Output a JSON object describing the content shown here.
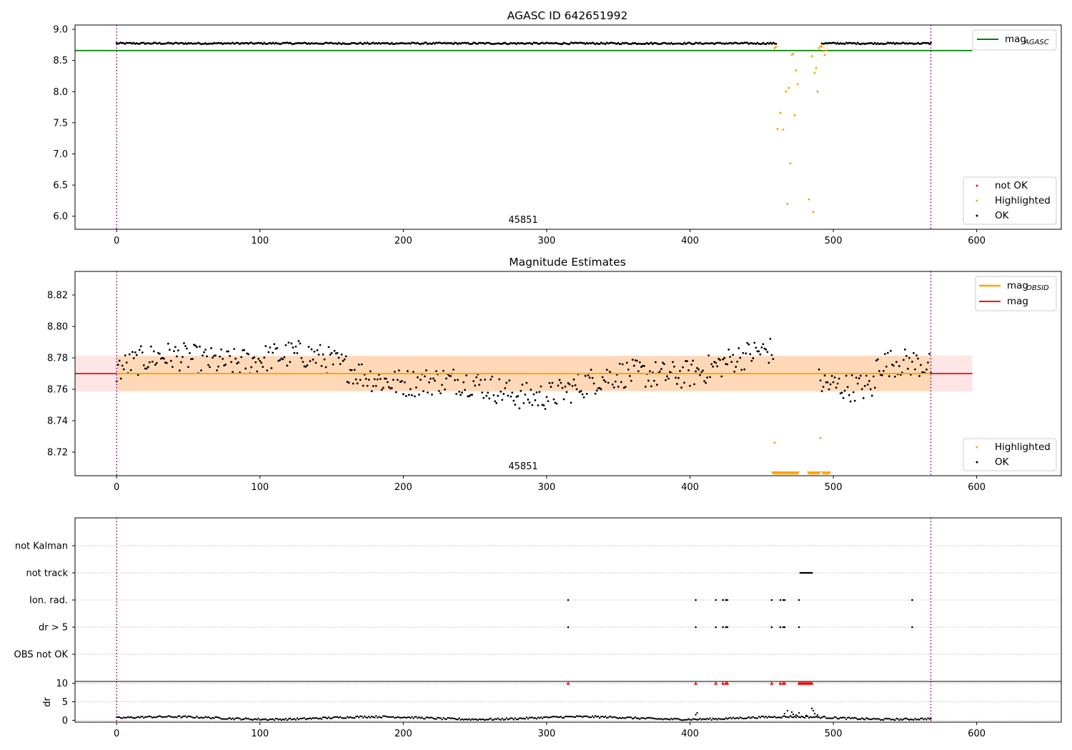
{
  "chart_data": [
    {
      "type": "scatter",
      "title": "AGASC ID 642651992",
      "annotation": "45851",
      "xlim": [
        -29,
        659
      ],
      "ylim": [
        5.79,
        9.07
      ],
      "xticks": [
        0,
        100,
        200,
        300,
        400,
        500,
        600
      ],
      "yticks": [
        6.0,
        6.5,
        7.0,
        7.5,
        8.0,
        8.5,
        9.0
      ],
      "ytick_labels": [
        "6.0",
        "6.5",
        "7.0",
        "7.5",
        "8.0",
        "8.5",
        "9.0"
      ],
      "vlines": [
        0,
        568
      ],
      "reference_line": {
        "name": "mag$_{AGASC}$",
        "label_main": "mag",
        "label_sub": "AGASC",
        "y": 8.66,
        "x_range": [
          -29,
          597
        ],
        "color": "#008000"
      },
      "ok_series": {
        "name": "OK",
        "color": "#000000",
        "baseline": 8.775,
        "x_ranges": [
          [
            0,
            460
          ],
          [
            492,
            568
          ]
        ],
        "x_step": 1
      },
      "highlighted": {
        "name": "Highlighted",
        "color": "#ffa500",
        "x": [
          459,
          460,
          461,
          463,
          465,
          467,
          468,
          469,
          470,
          471,
          472,
          473,
          474,
          475,
          483,
          485,
          486,
          487,
          488,
          489,
          490,
          491,
          492,
          493,
          494,
          495
        ],
        "y": [
          8.7,
          8.72,
          7.4,
          7.66,
          7.39,
          8.0,
          6.2,
          8.06,
          6.85,
          8.59,
          8.61,
          7.62,
          8.34,
          8.12,
          6.27,
          8.57,
          6.07,
          8.3,
          8.38,
          8.0,
          8.7,
          8.73,
          8.72,
          8.65,
          8.59,
          8.66
        ]
      },
      "not_ok": {
        "name": "not OK",
        "color": "#ff0000",
        "x": [],
        "y": []
      },
      "legend_upper": [
        "mag$_{AGASC}$"
      ],
      "legend_lower": [
        "not OK",
        "Highlighted",
        "OK"
      ]
    },
    {
      "type": "scatter",
      "title": "Magnitude Estimates",
      "annotation": "45851",
      "xlim": [
        -29,
        659
      ],
      "ylim": [
        8.705,
        8.835
      ],
      "xticks": [
        0,
        100,
        200,
        300,
        400,
        500,
        600
      ],
      "yticks": [
        8.72,
        8.74,
        8.76,
        8.78,
        8.8,
        8.82
      ],
      "ytick_labels": [
        "8.72",
        "8.74",
        "8.76",
        "8.78",
        "8.80",
        "8.82"
      ],
      "vlines": [
        0,
        568
      ],
      "mag": {
        "name": "mag",
        "y": 8.77,
        "band": [
          8.7585,
          8.7815
        ],
        "x_range": [
          -29,
          597
        ],
        "color": "#ff0000"
      },
      "mag_obsid": {
        "name": "mag$_{OBSID}$",
        "label_main": "mag",
        "label_sub": "OBSID",
        "y": 8.77,
        "band": [
          8.759,
          8.781
        ],
        "x_range": [
          0,
          568
        ],
        "color": "#ffa500"
      },
      "ok_series": {
        "name": "OK",
        "color": "#000000",
        "x_ranges": [
          [
            0,
            458
          ],
          [
            490,
            568
          ]
        ],
        "x_step": 1,
        "mean": 8.77
      },
      "highlighted": {
        "name": "Highlighted",
        "color": "#ffa500",
        "x": [
          459,
          491
        ],
        "y": [
          8.726,
          8.729
        ],
        "below_axis_markers": [
          458,
          459,
          460,
          461,
          462,
          463,
          464,
          465,
          466,
          467,
          468,
          469,
          470,
          471,
          472,
          473,
          474,
          475,
          483,
          484,
          485,
          486,
          487,
          488,
          489,
          490,
          493,
          494,
          495,
          496,
          497
        ]
      },
      "legend_upper": [
        "mag$_{OBSID}$",
        "mag"
      ],
      "legend_lower": [
        "Highlighted",
        "OK"
      ]
    },
    {
      "type": "scatter",
      "title": "",
      "xlim": [
        -29,
        659
      ],
      "flag_categories": [
        "OBS not OK",
        "dr > 5",
        "Ion. rad.",
        "not track",
        "not Kalman"
      ],
      "flags": {
        "not Kalman": [],
        "not track": [
          477,
          478,
          479,
          480,
          481,
          482,
          483,
          484,
          485
        ],
        "Ion. rad.": [
          315,
          404,
          418,
          423,
          425,
          426,
          457,
          463,
          465,
          466,
          476,
          555
        ],
        "dr > 5": [
          315,
          404,
          418,
          423,
          425,
          426,
          457,
          463,
          465,
          466,
          476,
          555
        ],
        "OBS not OK": []
      },
      "vlines": [
        0,
        568
      ]
    },
    {
      "type": "scatter",
      "title": "",
      "ylabel": "dr",
      "xlim": [
        -29,
        659
      ],
      "ylim": [
        -0.5,
        10.5
      ],
      "xticks": [
        0,
        100,
        200,
        300,
        400,
        500,
        600
      ],
      "yticks": [
        0,
        5,
        10
      ],
      "ytick_labels": [
        "0",
        "5",
        "10"
      ],
      "vlines": [
        0,
        568
      ],
      "dr_series": {
        "name": "dr",
        "color": "#000000",
        "x_range": [
          0,
          568
        ],
        "typical": 0.6
      },
      "dr_spikes": {
        "x": [
          404,
          405,
          466,
          468,
          470,
          471,
          472,
          474,
          476,
          481,
          485,
          486,
          487,
          489
        ],
        "y": [
          1.5,
          2.0,
          1.8,
          2.6,
          1.2,
          2.2,
          1.6,
          1.4,
          2.0,
          1.3,
          3.2,
          2.6,
          1.8,
          1.4
        ]
      },
      "clipped_markers": {
        "color": "#ff0000",
        "x": [
          315,
          404,
          418,
          423,
          425,
          426,
          457,
          463,
          465,
          466,
          476,
          477,
          478,
          479,
          480,
          481,
          482,
          483,
          484,
          485
        ]
      }
    }
  ]
}
